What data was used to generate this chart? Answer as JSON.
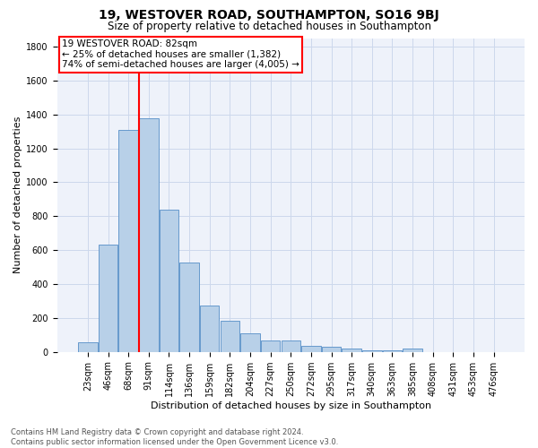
{
  "title": "19, WESTOVER ROAD, SOUTHAMPTON, SO16 9BJ",
  "subtitle": "Size of property relative to detached houses in Southampton",
  "xlabel": "Distribution of detached houses by size in Southampton",
  "ylabel": "Number of detached properties",
  "footer_line1": "Contains HM Land Registry data © Crown copyright and database right 2024.",
  "footer_line2": "Contains public sector information licensed under the Open Government Licence v3.0.",
  "bar_labels": [
    "23sqm",
    "46sqm",
    "68sqm",
    "91sqm",
    "114sqm",
    "136sqm",
    "159sqm",
    "182sqm",
    "204sqm",
    "227sqm",
    "250sqm",
    "272sqm",
    "295sqm",
    "317sqm",
    "340sqm",
    "363sqm",
    "385sqm",
    "408sqm",
    "431sqm",
    "453sqm",
    "476sqm"
  ],
  "bar_values": [
    55,
    635,
    1310,
    1375,
    840,
    525,
    275,
    185,
    108,
    68,
    68,
    35,
    28,
    18,
    10,
    8,
    18,
    0,
    0,
    0,
    0
  ],
  "bar_color": "#b8d0e8",
  "bar_edge_color": "#6699cc",
  "property_line_x": 2.5,
  "annotation_line1": "19 WESTOVER ROAD: 82sqm",
  "annotation_line2": "← 25% of detached houses are smaller (1,382)",
  "annotation_line3": "74% of semi-detached houses are larger (4,005) →",
  "ylim": [
    0,
    1850
  ],
  "yticks": [
    0,
    200,
    400,
    600,
    800,
    1000,
    1200,
    1400,
    1600,
    1800
  ],
  "grid_color": "#ccd8ec",
  "bg_color": "#eef2fa",
  "title_fontsize": 10,
  "subtitle_fontsize": 8.5,
  "xlabel_fontsize": 8,
  "ylabel_fontsize": 8,
  "tick_fontsize": 7,
  "annotation_fontsize": 7.5,
  "footer_fontsize": 6
}
